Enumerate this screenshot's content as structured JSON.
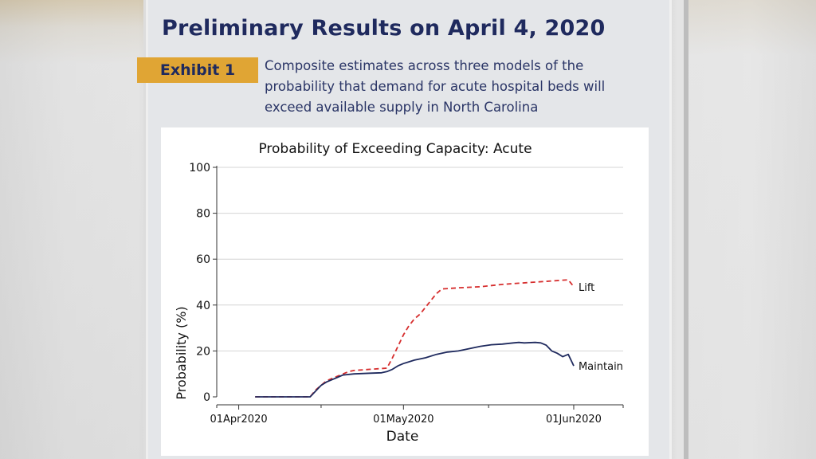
{
  "headline": "Preliminary Results on April 4, 2020",
  "exhibit_label": "Exhibit 1",
  "caption_lines": [
    "Composite estimates across three models of the",
    "probability that demand for acute hospital beds will",
    "exceed available supply in North Carolina"
  ],
  "colors": {
    "title": "#1f2a5e",
    "exhibit_bg": "#e0a534",
    "lift": "#d62d2d",
    "maintain": "#1f2a5e"
  },
  "chart_data": {
    "type": "line",
    "title": "Probability of Exceeding Capacity: Acute",
    "xlabel": "Date",
    "ylabel": "Probability (%)",
    "xlim": [
      "2020-03-28",
      "2020-06-10"
    ],
    "ylim": [
      0,
      100
    ],
    "y_ticks": [
      0,
      20,
      40,
      60,
      80,
      100
    ],
    "x_ticks": [
      {
        "date": "2020-04-01",
        "label": "01Apr2020"
      },
      {
        "date": "2020-05-01",
        "label": "01May2020"
      },
      {
        "date": "2020-06-01",
        "label": "01Jun2020"
      }
    ],
    "grid": true,
    "legend": "direct labels at line ends",
    "series": [
      {
        "name": "Lift",
        "style": "dashed",
        "color": "#d62d2d",
        "points": [
          [
            "2020-04-04",
            0
          ],
          [
            "2020-04-14",
            0
          ],
          [
            "2020-04-15",
            3
          ],
          [
            "2020-04-16",
            5
          ],
          [
            "2020-04-17",
            7
          ],
          [
            "2020-04-18",
            8
          ],
          [
            "2020-04-19",
            9
          ],
          [
            "2020-04-20",
            10
          ],
          [
            "2020-04-21",
            11
          ],
          [
            "2020-04-22",
            11.5
          ],
          [
            "2020-04-25",
            12
          ],
          [
            "2020-04-28",
            12.5
          ],
          [
            "2020-04-29",
            17
          ],
          [
            "2020-04-30",
            22
          ],
          [
            "2020-05-01",
            27
          ],
          [
            "2020-05-02",
            31
          ],
          [
            "2020-05-03",
            34
          ],
          [
            "2020-05-04",
            36
          ],
          [
            "2020-05-05",
            39
          ],
          [
            "2020-05-06",
            42
          ],
          [
            "2020-05-07",
            45
          ],
          [
            "2020-05-08",
            47
          ],
          [
            "2020-05-11",
            47.5
          ],
          [
            "2020-05-15",
            48
          ],
          [
            "2020-05-19",
            49
          ],
          [
            "2020-05-22",
            49.5
          ],
          [
            "2020-05-25",
            50
          ],
          [
            "2020-05-28",
            50.5
          ],
          [
            "2020-05-31",
            51
          ],
          [
            "2020-06-01",
            48
          ]
        ]
      },
      {
        "name": "Maintain",
        "style": "solid",
        "color": "#1f2a5e",
        "points": [
          [
            "2020-04-04",
            0
          ],
          [
            "2020-04-14",
            0
          ],
          [
            "2020-04-15",
            2.5
          ],
          [
            "2020-04-16",
            5
          ],
          [
            "2020-04-17",
            6.5
          ],
          [
            "2020-04-18",
            7.5
          ],
          [
            "2020-04-19",
            8.5
          ],
          [
            "2020-04-20",
            9.5
          ],
          [
            "2020-04-22",
            10
          ],
          [
            "2020-04-25",
            10.3
          ],
          [
            "2020-04-27",
            10.5
          ],
          [
            "2020-04-28",
            11
          ],
          [
            "2020-04-29",
            12
          ],
          [
            "2020-04-30",
            13.5
          ],
          [
            "2020-05-01",
            14.5
          ],
          [
            "2020-05-03",
            16
          ],
          [
            "2020-05-05",
            17
          ],
          [
            "2020-05-07",
            18.5
          ],
          [
            "2020-05-09",
            19.5
          ],
          [
            "2020-05-11",
            20
          ],
          [
            "2020-05-13",
            21
          ],
          [
            "2020-05-15",
            22
          ],
          [
            "2020-05-17",
            22.7
          ],
          [
            "2020-05-19",
            23
          ],
          [
            "2020-05-21",
            23.5
          ],
          [
            "2020-05-22",
            23.7
          ],
          [
            "2020-05-23",
            23.5
          ],
          [
            "2020-05-25",
            23.7
          ],
          [
            "2020-05-26",
            23.5
          ],
          [
            "2020-05-27",
            22.5
          ],
          [
            "2020-05-28",
            20
          ],
          [
            "2020-05-29",
            19
          ],
          [
            "2020-05-30",
            17.5
          ],
          [
            "2020-05-31",
            18.5
          ],
          [
            "2020-06-01",
            13.5
          ]
        ]
      }
    ]
  }
}
